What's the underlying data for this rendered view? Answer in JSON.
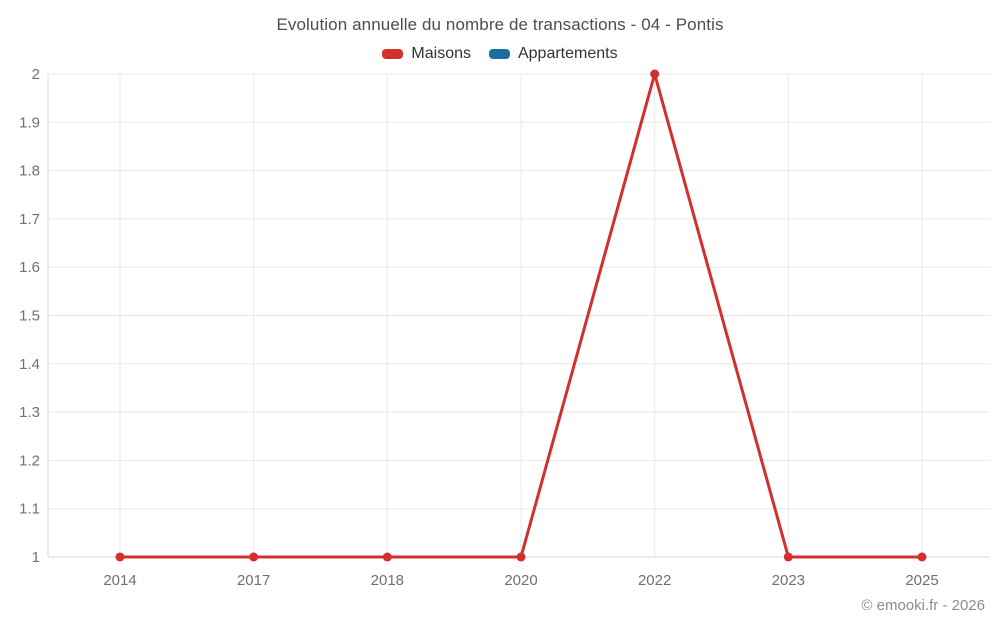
{
  "copyright": "© emooki.fr - 2026",
  "chart_data": {
    "type": "line",
    "title": "Evolution annuelle du nombre de transactions - 04 - Pontis",
    "categories": [
      "2014",
      "2017",
      "2018",
      "2020",
      "2022",
      "2023",
      "2025"
    ],
    "series": [
      {
        "name": "Maisons",
        "color": "#d32f2f",
        "values": [
          1,
          1,
          1,
          1,
          2,
          1,
          1
        ]
      },
      {
        "name": "Appartements",
        "color": "#1a6d9e",
        "values": []
      }
    ],
    "ylim": [
      1,
      2
    ],
    "ytick_step": 0.1,
    "ytick_labels": [
      "1",
      "1.1",
      "1.2",
      "1.3",
      "1.4",
      "1.5",
      "1.6",
      "1.7",
      "1.8",
      "1.9",
      "2"
    ],
    "xlabel": "",
    "ylabel": "",
    "grid": true,
    "legend_position": "top",
    "legend": [
      "Maisons",
      "Appartements"
    ]
  }
}
